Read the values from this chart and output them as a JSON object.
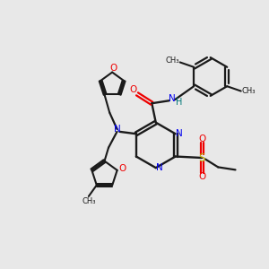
{
  "bg_color": "#e8e8e8",
  "bond_color": "#1a1a1a",
  "N_color": "#0000ee",
  "O_color": "#ee0000",
  "S_color": "#bbaa00",
  "H_color": "#007777",
  "figsize": [
    3.0,
    3.0
  ],
  "dpi": 100,
  "xlim": [
    0,
    10
  ],
  "ylim": [
    0,
    10
  ]
}
